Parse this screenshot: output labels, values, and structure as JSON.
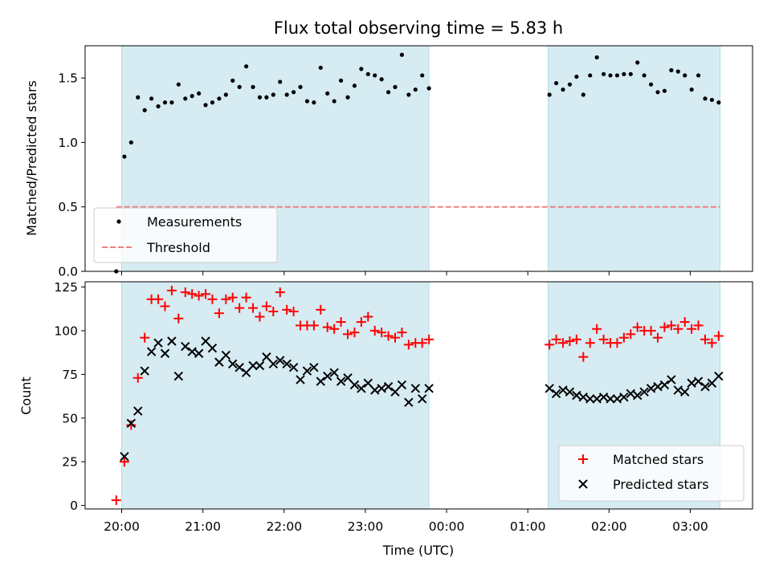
{
  "chart_data": [
    {
      "type": "scatter",
      "title": "Flux total observing time = 5.83 h",
      "ylabel": "Matched/Predicted stars",
      "xlabel": "",
      "ylim": [
        0,
        1.75
      ],
      "yticks": [
        "0.0",
        "0.5",
        "1.0",
        "1.5"
      ],
      "legend": "lower-left",
      "grid": false,
      "shaded_intervals": [
        [
          "20:00",
          "23:47"
        ],
        [
          "01:15",
          "03:22"
        ]
      ],
      "threshold": {
        "name": "Threshold",
        "value": 0.5,
        "color": "#f08080",
        "style": "dashed",
        "x_range": [
          "19:56",
          "03:22"
        ]
      },
      "series": [
        {
          "name": "Measurements",
          "color": "#000000",
          "marker": "dot",
          "x": [
            "19:56",
            "20:02",
            "20:07",
            "20:12",
            "20:17",
            "20:22",
            "20:27",
            "20:32",
            "20:37",
            "20:42",
            "20:47",
            "20:52",
            "20:57",
            "21:02",
            "21:07",
            "21:12",
            "21:17",
            "21:22",
            "21:27",
            "21:32",
            "21:37",
            "21:42",
            "21:47",
            "21:52",
            "21:57",
            "22:02",
            "22:07",
            "22:12",
            "22:17",
            "22:22",
            "22:27",
            "22:32",
            "22:37",
            "22:42",
            "22:47",
            "22:52",
            "22:57",
            "23:02",
            "23:07",
            "23:12",
            "23:17",
            "23:22",
            "23:27",
            "23:32",
            "23:37",
            "23:42",
            "23:47",
            "01:16",
            "01:21",
            "01:26",
            "01:31",
            "01:36",
            "01:41",
            "01:46",
            "01:51",
            "01:56",
            "02:01",
            "02:06",
            "02:11",
            "02:16",
            "02:21",
            "02:26",
            "02:31",
            "02:36",
            "02:41",
            "02:46",
            "02:51",
            "02:56",
            "03:01",
            "03:06",
            "03:11",
            "03:16",
            "03:21"
          ],
          "y": [
            0.0,
            0.89,
            1.0,
            1.35,
            1.25,
            1.34,
            1.28,
            1.31,
            1.31,
            1.45,
            1.34,
            1.36,
            1.38,
            1.29,
            1.31,
            1.34,
            1.37,
            1.48,
            1.43,
            1.59,
            1.43,
            1.35,
            1.35,
            1.37,
            1.47,
            1.37,
            1.39,
            1.43,
            1.32,
            1.31,
            1.58,
            1.38,
            1.32,
            1.48,
            1.35,
            1.44,
            1.57,
            1.53,
            1.52,
            1.49,
            1.39,
            1.43,
            1.68,
            1.37,
            1.41,
            1.52,
            1.42,
            1.37,
            1.46,
            1.41,
            1.45,
            1.51,
            1.37,
            1.52,
            1.66,
            1.53,
            1.52,
            1.52,
            1.53,
            1.53,
            1.62,
            1.52,
            1.45,
            1.39,
            1.4,
            1.56,
            1.55,
            1.52,
            1.41,
            1.52,
            1.34,
            1.33,
            1.31
          ]
        }
      ]
    },
    {
      "type": "scatter",
      "title": "",
      "xlabel": "Time (UTC)",
      "ylabel": "Count",
      "ylim": [
        -2,
        128
      ],
      "yticks": [
        "0",
        "25",
        "50",
        "75",
        "100",
        "125"
      ],
      "xlim": [
        "19:33",
        "03:46"
      ],
      "xticks": [
        "20:00",
        "21:00",
        "22:00",
        "23:00",
        "00:00",
        "01:00",
        "02:00",
        "03:00"
      ],
      "legend": "lower-right",
      "grid": false,
      "shaded_intervals": [
        [
          "20:00",
          "23:47"
        ],
        [
          "01:15",
          "03:22"
        ]
      ],
      "series": [
        {
          "name": "Matched stars",
          "color": "#ff0000",
          "marker": "plus",
          "x": [
            "19:56",
            "20:02",
            "20:07",
            "20:12",
            "20:17",
            "20:22",
            "20:27",
            "20:32",
            "20:37",
            "20:42",
            "20:47",
            "20:52",
            "20:57",
            "21:02",
            "21:07",
            "21:12",
            "21:17",
            "21:22",
            "21:27",
            "21:32",
            "21:37",
            "21:42",
            "21:47",
            "21:52",
            "21:57",
            "22:02",
            "22:07",
            "22:12",
            "22:17",
            "22:22",
            "22:27",
            "22:32",
            "22:37",
            "22:42",
            "22:47",
            "22:52",
            "22:57",
            "23:02",
            "23:07",
            "23:12",
            "23:17",
            "23:22",
            "23:27",
            "23:32",
            "23:37",
            "23:42",
            "23:47",
            "01:16",
            "01:21",
            "01:26",
            "01:31",
            "01:36",
            "01:41",
            "01:46",
            "01:51",
            "01:56",
            "02:01",
            "02:06",
            "02:11",
            "02:16",
            "02:21",
            "02:26",
            "02:31",
            "02:36",
            "02:41",
            "02:46",
            "02:51",
            "02:56",
            "03:01",
            "03:06",
            "03:11",
            "03:16",
            "03:21"
          ],
          "y": [
            3,
            25,
            46,
            73,
            96,
            118,
            118,
            114,
            123,
            107,
            122,
            121,
            120,
            121,
            118,
            110,
            118,
            119,
            113,
            119,
            113,
            108,
            114,
            111,
            122,
            112,
            111,
            103,
            103,
            103,
            112,
            102,
            101,
            105,
            98,
            99,
            105,
            108,
            100,
            99,
            97,
            96,
            99,
            92,
            93,
            93,
            95,
            92,
            95,
            93,
            94,
            95,
            85,
            93,
            101,
            95,
            93,
            93,
            96,
            98,
            102,
            100,
            100,
            96,
            102,
            103,
            101,
            105,
            101,
            103,
            95,
            93,
            97
          ]
        },
        {
          "name": "Predicted stars",
          "color": "#000000",
          "marker": "x",
          "x": [
            "20:02",
            "20:07",
            "20:12",
            "20:17",
            "20:22",
            "20:27",
            "20:32",
            "20:37",
            "20:42",
            "20:47",
            "20:52",
            "20:57",
            "21:02",
            "21:07",
            "21:12",
            "21:17",
            "21:22",
            "21:27",
            "21:32",
            "21:37",
            "21:42",
            "21:47",
            "21:52",
            "21:57",
            "22:02",
            "22:07",
            "22:12",
            "22:17",
            "22:22",
            "22:27",
            "22:32",
            "22:37",
            "22:42",
            "22:47",
            "22:52",
            "22:57",
            "23:02",
            "23:07",
            "23:12",
            "23:17",
            "23:22",
            "23:27",
            "23:32",
            "23:37",
            "23:42",
            "23:47",
            "01:16",
            "01:21",
            "01:26",
            "01:31",
            "01:36",
            "01:41",
            "01:46",
            "01:51",
            "01:56",
            "02:01",
            "02:06",
            "02:11",
            "02:16",
            "02:21",
            "02:26",
            "02:31",
            "02:36",
            "02:41",
            "02:46",
            "02:51",
            "02:56",
            "03:01",
            "03:06",
            "03:11",
            "03:16",
            "03:21"
          ],
          "y": [
            28,
            47,
            54,
            77,
            88,
            93,
            87,
            94,
            74,
            91,
            88,
            87,
            94,
            90,
            82,
            86,
            81,
            79,
            76,
            80,
            80,
            85,
            81,
            83,
            81,
            79,
            72,
            77,
            79,
            71,
            74,
            76,
            71,
            73,
            69,
            67,
            70,
            66,
            67,
            68,
            65,
            69,
            59,
            67,
            61,
            67,
            67,
            64,
            66,
            65,
            63,
            62,
            61,
            61,
            62,
            61,
            61,
            62,
            64,
            63,
            65,
            67,
            68,
            69,
            72,
            66,
            65,
            70,
            71,
            68,
            70,
            74
          ]
        }
      ]
    }
  ]
}
